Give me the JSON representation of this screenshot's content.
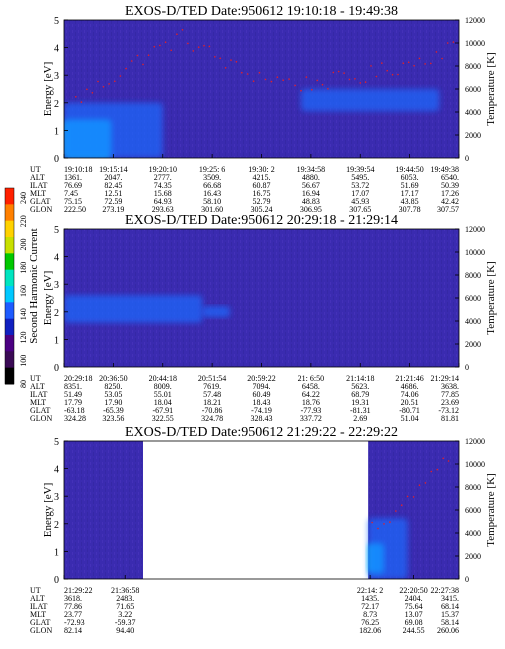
{
  "colors": {
    "background": "#ffffff",
    "spectrogram_base": "#3a2bb0",
    "enhancement_blue": "#1b6bff",
    "enhancement_cyan": "#00e5ff",
    "temperature_trace": "#e0202a",
    "colorbar_scale": [
      "#000000",
      "#3a0a55",
      "#4b0082",
      "#1020c0",
      "#1e5bff",
      "#00c8ff",
      "#00e5c0",
      "#00c800",
      "#c8e000",
      "#ffd200",
      "#ff8000",
      "#ff2000"
    ]
  },
  "colorbar": {
    "label": "Second Harmonic Current",
    "ticks": [
      "240",
      "220",
      "200",
      "180",
      "160",
      "140",
      "120",
      "100",
      "80"
    ]
  },
  "chart_data": [
    {
      "type": "heatmap",
      "title": "EXOS-D/TED   Date:950612   19:10:18 - 19:49:38",
      "ylabel": "Energy [eV]",
      "ylim": [
        0,
        5
      ],
      "yticks": [
        "0",
        "1",
        "2",
        "3",
        "4",
        "5"
      ],
      "y2label": "Temperature [K]",
      "y2lim": [
        0,
        12000
      ],
      "y2ticks": [
        "0",
        "2000",
        "4000",
        "6000",
        "8000",
        "10000",
        "12000"
      ],
      "data_coverage": [
        [
          0,
          1
        ]
      ],
      "enhancements": [
        {
          "t0": 0.0,
          "t1": 0.12,
          "e0": 0.0,
          "e1": 1.4,
          "level": "cyan"
        },
        {
          "t0": 0.0,
          "t1": 0.25,
          "e0": 0.0,
          "e1": 2.0,
          "level": "blue"
        },
        {
          "t0": 0.6,
          "t1": 0.95,
          "e0": 1.7,
          "e1": 2.5,
          "level": "blue"
        }
      ],
      "temperature_trace_k": [
        [
          0.03,
          5000
        ],
        [
          0.1,
          6500
        ],
        [
          0.2,
          8800
        ],
        [
          0.3,
          10500
        ],
        [
          0.45,
          7500
        ],
        [
          0.6,
          6400
        ],
        [
          0.75,
          7000
        ],
        [
          0.9,
          8500
        ],
        [
          1.0,
          10000
        ]
      ],
      "ephemeris": {
        "row_labels": [
          "UT",
          "ALT",
          "ILAT",
          "MLT",
          "GLAT",
          "GLON"
        ],
        "columns": [
          [
            "19:10:18",
            "1361.",
            "76.69",
            "7.45",
            "75.15",
            "222.50"
          ],
          [
            "19:15:14",
            "2047.",
            "82.45",
            "12.51",
            "72.59",
            "273.19"
          ],
          [
            "19:20:10",
            "2777.",
            "74.35",
            "15.68",
            "64.93",
            "293.63"
          ],
          [
            "19:25: 6",
            "3509.",
            "66.68",
            "16.43",
            "58.10",
            "301.60"
          ],
          [
            "19:30: 2",
            "4215.",
            "60.87",
            "16.75",
            "52.79",
            "305.24"
          ],
          [
            "19:34:58",
            "4880.",
            "56.67",
            "16.94",
            "48.83",
            "306.95"
          ],
          [
            "19:39:54",
            "5495.",
            "53.72",
            "17.07",
            "45.93",
            "307.65"
          ],
          [
            "19:44:50",
            "6053.",
            "51.69",
            "17.17",
            "43.85",
            "307.78"
          ],
          [
            "19:49:38",
            "6540.",
            "50.39",
            "17.26",
            "42.42",
            "307.57"
          ]
        ]
      }
    },
    {
      "type": "heatmap",
      "title": "EXOS-D/TED   Date:950612   20:29:18 - 21:29:14",
      "ylabel": "Energy [eV]",
      "ylim": [
        0,
        5
      ],
      "yticks": [
        "0",
        "1",
        "2",
        "3",
        "4",
        "5"
      ],
      "y2label": "Temperature [K]",
      "y2lim": [
        0,
        12000
      ],
      "y2ticks": [
        "0",
        "2000",
        "4000",
        "6000",
        "8000",
        "10000",
        "12000"
      ],
      "data_coverage": [
        [
          0,
          1
        ]
      ],
      "enhancements": [
        {
          "t0": 0.0,
          "t1": 0.35,
          "e0": 1.6,
          "e1": 2.6,
          "level": "blue"
        },
        {
          "t0": 0.35,
          "t1": 0.42,
          "e0": 1.8,
          "e1": 2.2,
          "level": "blue"
        }
      ],
      "temperature_trace_k": [],
      "ephemeris": {
        "row_labels": [
          "UT",
          "ALT",
          "ILAT",
          "MLT",
          "GLAT",
          "GLON"
        ],
        "columns": [
          [
            "20:29:18",
            "8351.",
            "51.49",
            "17.79",
            "-63.18",
            "324.28"
          ],
          [
            "20:36:50",
            "8250.",
            "53.05",
            "17.90",
            "-65.39",
            "323.56"
          ],
          [
            "20:44:18",
            "8009.",
            "55.01",
            "18.04",
            "-67.91",
            "322.55"
          ],
          [
            "20:51:54",
            "7619.",
            "57.48",
            "18.21",
            "-70.86",
            "324.78"
          ],
          [
            "20:59:22",
            "7094.",
            "60.49",
            "18.43",
            "-74.19",
            "328.43"
          ],
          [
            "21: 6:50",
            "6458.",
            "64.22",
            "18.76",
            "-77.93",
            "337.72"
          ],
          [
            "21:14:18",
            "5623.",
            "68.79",
            "19.31",
            "-81.31",
            "2.69"
          ],
          [
            "21:21:46",
            "4686.",
            "74.06",
            "20.51",
            "-80.71",
            "51.04"
          ],
          [
            "21:29:14",
            "3638.",
            "77.85",
            "23.69",
            "-73.12",
            "81.81"
          ]
        ]
      }
    },
    {
      "type": "heatmap",
      "title": "EXOS-D/TED   Date:950612   21:29:22 - 22:29:22",
      "ylabel": "Energy [eV]",
      "ylim": [
        0,
        5
      ],
      "yticks": [
        "0",
        "1",
        "2",
        "3",
        "4",
        "5"
      ],
      "y2label": "Temperature [K]",
      "y2lim": [
        0,
        12000
      ],
      "y2ticks": [
        "0",
        "2000",
        "4000",
        "6000",
        "8000",
        "10000",
        "12000"
      ],
      "data_coverage": [
        [
          0,
          0.2
        ],
        [
          0.77,
          1
        ]
      ],
      "enhancements": [
        {
          "t0": 0.77,
          "t1": 0.81,
          "e0": 0.2,
          "e1": 1.3,
          "level": "cyan"
        },
        {
          "t0": 0.77,
          "t1": 0.87,
          "e0": 0.0,
          "e1": 2.2,
          "level": "blue"
        }
      ],
      "temperature_trace_k": [
        [
          0.78,
          4500
        ],
        [
          0.84,
          6000
        ],
        [
          0.9,
          8000
        ],
        [
          0.96,
          10500
        ],
        [
          1.0,
          12000
        ]
      ],
      "ephemeris": {
        "row_labels": [
          "UT",
          "ALT",
          "ILAT",
          "MLT",
          "GLAT",
          "GLON"
        ],
        "columns": [
          [
            "21:29:22",
            "3618.",
            "77.86",
            "23.77",
            "-72.93",
            "82.14"
          ],
          [
            "21:36:58",
            "2483.",
            "71.65",
            "3.22",
            "-59.37",
            "94.40"
          ],
          [
            "22:14: 2",
            "1435.",
            "72.17",
            "8.73",
            "76.25",
            "182.06"
          ],
          [
            "22:20:50",
            "2404.",
            "75.64",
            "13.07",
            "69.08",
            "244.55"
          ],
          [
            "22:27:38",
            "3415.",
            "68.14",
            "15.37",
            "58.14",
            "260.06"
          ]
        ]
      }
    }
  ]
}
